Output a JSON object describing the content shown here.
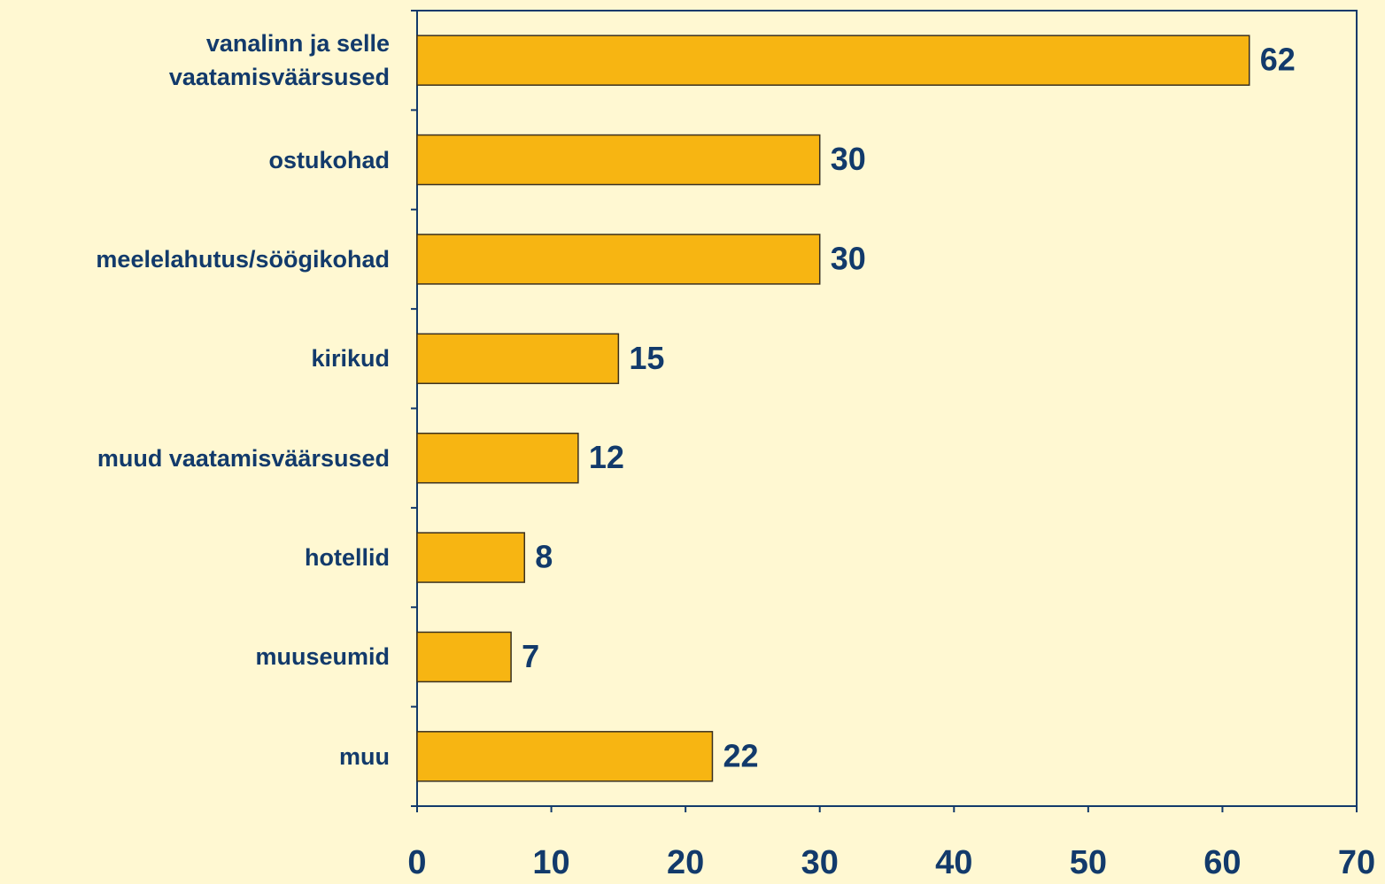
{
  "chart_data": {
    "type": "barh",
    "categories": [
      "vanalinn ja selle vaatamisväärsused",
      "ostukohad",
      "meelelahutus/söögikohad",
      "kirikud",
      "muud vaatamisväärsused",
      "hotellid",
      "muuseumid",
      "muu"
    ],
    "values": [
      62,
      30,
      30,
      15,
      12,
      8,
      7,
      22
    ],
    "color": "#f7b512",
    "xlim": [
      0,
      70
    ],
    "xticks": [
      0,
      10,
      20,
      30,
      40,
      50,
      60,
      70
    ]
  }
}
